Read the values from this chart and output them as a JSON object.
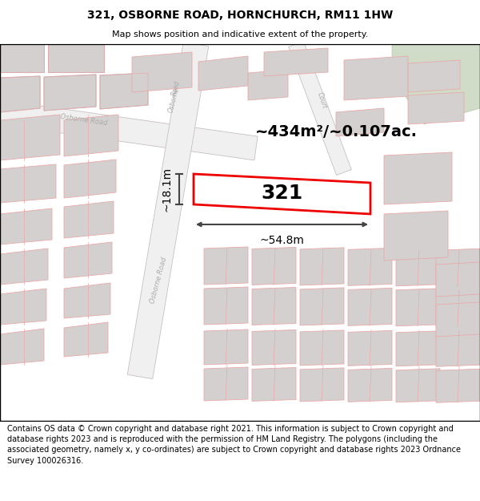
{
  "title": "321, OSBORNE ROAD, HORNCHURCH, RM11 1HW",
  "subtitle": "Map shows position and indicative extent of the property.",
  "footer": "Contains OS data © Crown copyright and database right 2021. This information is subject to Crown copyright and database rights 2023 and is reproduced with the permission of HM Land Registry. The polygons (including the associated geometry, namely x, y co-ordinates) are subject to Crown copyright and database rights 2023 Ordnance Survey 100026316.",
  "area_label": "~434m²/~0.107ac.",
  "width_label": "~54.8m",
  "height_label": "~18.1m",
  "plot_number": "321",
  "bg_color": "#ffffff",
  "building_fill": "#d4d0d0",
  "building_outline": "#c8b8b8",
  "plot_fill": "#ffffff",
  "plot_outline": "#ee0000",
  "road_fill": "#ffffff",
  "road_outline": "#c8b8b8",
  "land_outline": "#e8aaaa",
  "green_fill": "#d0dcc8",
  "dim_color": "#444444",
  "road_label_color": "#aaaaaa",
  "title_fontsize": 10,
  "subtitle_fontsize": 8,
  "footer_fontsize": 7
}
